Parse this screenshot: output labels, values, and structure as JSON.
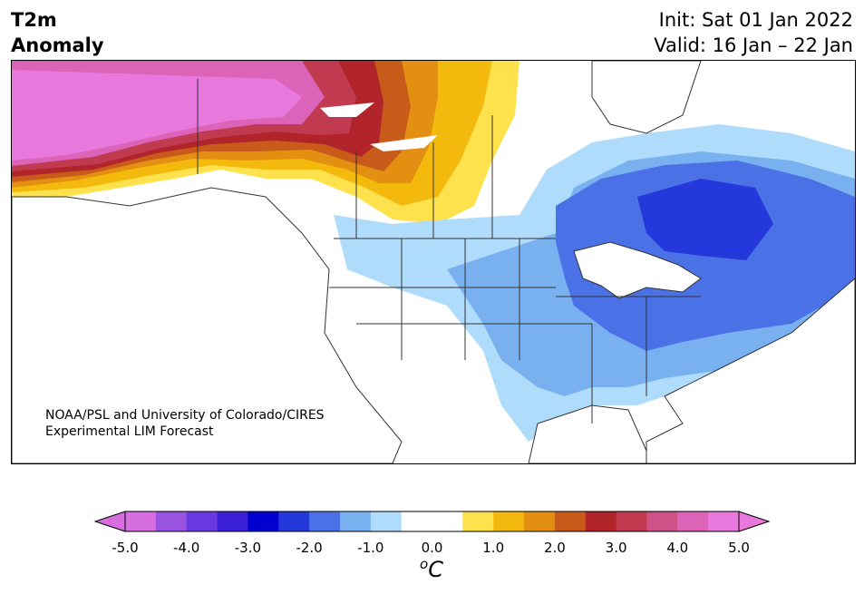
{
  "header": {
    "title_line1": "T2m",
    "title_line2": "Anomaly",
    "init": "Init: Sat 01 Jan 2022",
    "valid": "Valid: 16 Jan – 22 Jan"
  },
  "credit": {
    "line1": "NOAA/PSL and University of Colorado/CIRES",
    "line2": "Experimental LIM Forecast"
  },
  "colorbar": {
    "colors": [
      "#d66ee0",
      "#9a52e0",
      "#6a3ae0",
      "#3a1fd6",
      "#0000cf",
      "#2438dc",
      "#4a72e6",
      "#78b0f0",
      "#b0dcfb",
      "#ffffff",
      "#ffffff",
      "#fde24e",
      "#f3b90c",
      "#e38f12",
      "#c85a1a",
      "#b0242a",
      "#c03a50",
      "#cc5288",
      "#dc64b8",
      "#e878dc"
    ],
    "ticks": [
      "-5.0",
      "-4.0",
      "-3.0",
      "-2.0",
      "-1.0",
      "0.0",
      "1.0",
      "2.0",
      "3.0",
      "4.0",
      "5.0"
    ],
    "unit_base": "C",
    "unit_sup": "o"
  },
  "palette": {
    "magenta": "#e878dc",
    "dark_red": "#b0242a",
    "orange": "#e38f12",
    "yellow": "#fde24e",
    "light_blue": "#b0dcfb",
    "mid_blue": "#78b0f0",
    "blue": "#4a72e6",
    "deep_blue": "#2438dc"
  }
}
